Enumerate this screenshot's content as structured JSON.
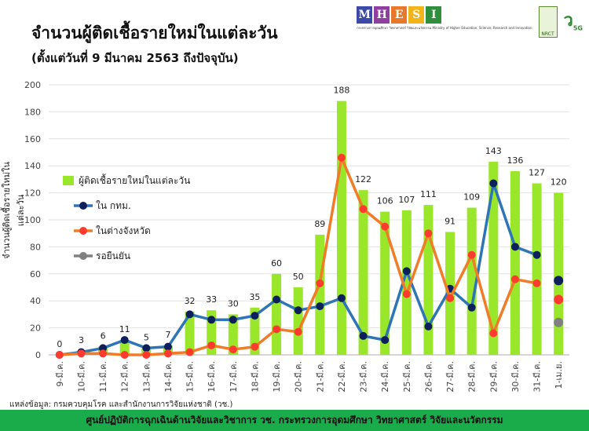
{
  "header": {
    "title": "จำนวนผู้ติดเชื้อรายใหม่ในแต่ละวัน",
    "subtitle": "(ตั้งแต่วันที่ 9 มีนาคม 2563 ถึงปัจจุบัน)"
  },
  "logos": {
    "mhesi": "MHESI",
    "mhesi_sub": "กระทรวงการอุดมศึกษา วิทยาศาสตร์ วิจัยและนวัตกรรม Ministry of Higher Education, Science, Research and Innovation",
    "nrct": "วช. NRCT",
    "v5g": "5G"
  },
  "colors": {
    "bars": "#99e62a",
    "bangkok": "#2e75b6",
    "bangkok_marker": "#0d1f5c",
    "provinces": "#f07c28",
    "provinces_marker": "#ff3b30",
    "pending": "#808080",
    "footer": "#1aab4b"
  },
  "chart_data": {
    "type": "bar+line",
    "ylabel": "จำนวนผู้ติดเชื้อรายใหม่ในแต่ละวัน",
    "ylim": [
      0,
      200
    ],
    "yticks": [
      0,
      20,
      40,
      60,
      80,
      100,
      120,
      140,
      160,
      180,
      200
    ],
    "grid": true,
    "legend_position": "left",
    "categories": [
      "9-มี.ค.",
      "10-มี.ค.",
      "11-มี.ค.",
      "12-มี.ค.",
      "13-มี.ค.",
      "14-มี.ค.",
      "15-มี.ค.",
      "16-มี.ค.",
      "17-มี.ค.",
      "18-มี.ค.",
      "19-มี.ค.",
      "20-มี.ค.",
      "21-มี.ค.",
      "22-มี.ค.",
      "23-มี.ค.",
      "24-มี.ค.",
      "25-มี.ค.",
      "26-มี.ค.",
      "27-มี.ค.",
      "28-มี.ค.",
      "29-มี.ค.",
      "30-มี.ค.",
      "31-มี.ค.",
      "1-เม.ย."
    ],
    "series": [
      {
        "name": "ผู้ติดเชื้อรายใหม่ในแต่ละวัน",
        "type": "bar",
        "values": [
          0,
          3,
          6,
          11,
          5,
          7,
          32,
          33,
          30,
          35,
          60,
          50,
          89,
          188,
          122,
          106,
          107,
          111,
          91,
          109,
          143,
          136,
          127,
          120
        ]
      },
      {
        "name": "ใน กทม.",
        "type": "line",
        "values": [
          0,
          2,
          5,
          11,
          5,
          6,
          30,
          26,
          26,
          29,
          41,
          33,
          36,
          42,
          14,
          11,
          62,
          21,
          49,
          35,
          127,
          80,
          74,
          55
        ]
      },
      {
        "name": "ในต่างจังหวัด",
        "type": "line",
        "values": [
          0,
          1,
          1,
          0,
          0,
          1,
          2,
          7,
          4,
          6,
          19,
          17,
          53,
          146,
          108,
          95,
          45,
          90,
          42,
          74,
          16,
          56,
          53,
          41
        ]
      },
      {
        "name": "รอยืนยัน",
        "type": "line",
        "values": [
          null,
          null,
          null,
          null,
          null,
          null,
          null,
          null,
          null,
          null,
          null,
          null,
          null,
          null,
          null,
          null,
          null,
          null,
          null,
          null,
          null,
          null,
          null,
          24
        ]
      }
    ]
  },
  "source": "แหล่งข้อมูล: กรมควบคุมโรค และสำนักงานการวิจัยแห่งชาติ (วช.)",
  "footer": "ศูนย์ปฏิบัติการฉุกเฉินด้านวิจัยและวิชาการ   วช.   กระทรวงการอุดมศึกษา วิทยาศาสตร์ วิจัยและนวัตกรรม"
}
